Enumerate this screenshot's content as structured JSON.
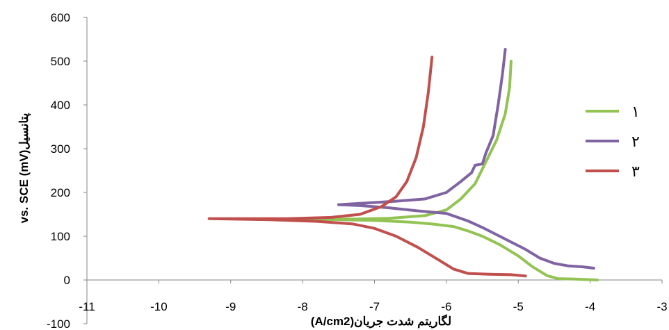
{
  "chart_data": {
    "type": "line",
    "xlabel": "لگاریتم شدت جریان(A/cm2)",
    "ylabel": "vs. SCE (mV)پتانسیل",
    "xlim": [
      -11,
      -3
    ],
    "ylim": [
      -100,
      600
    ],
    "xticks": [
      -11,
      -10,
      -9,
      -8,
      -7,
      -6,
      -5,
      -4,
      -3
    ],
    "yticks": [
      -100,
      0,
      100,
      200,
      300,
      400,
      500,
      600
    ],
    "grid": false,
    "legend_position": "right",
    "series": [
      {
        "name": "۱",
        "color": "#92c353",
        "points": [
          [
            -5.1,
            500
          ],
          [
            -5.12,
            440
          ],
          [
            -5.18,
            380
          ],
          [
            -5.3,
            320
          ],
          [
            -5.45,
            270
          ],
          [
            -5.6,
            220
          ],
          [
            -5.8,
            185
          ],
          [
            -6.0,
            160
          ],
          [
            -6.3,
            147
          ],
          [
            -6.8,
            141
          ],
          [
            -7.3,
            139
          ],
          [
            -8.0,
            139
          ],
          [
            -7.5,
            138
          ],
          [
            -7.0,
            136
          ],
          [
            -6.5,
            132
          ],
          [
            -6.2,
            128
          ],
          [
            -5.9,
            122
          ],
          [
            -5.7,
            112
          ],
          [
            -5.5,
            100
          ],
          [
            -5.25,
            80
          ],
          [
            -5.0,
            55
          ],
          [
            -4.8,
            30
          ],
          [
            -4.6,
            10
          ],
          [
            -4.45,
            3
          ],
          [
            -4.2,
            2
          ],
          [
            -3.9,
            0
          ]
        ]
      },
      {
        "name": "۲",
        "color": "#8064a2",
        "points": [
          [
            -5.18,
            527
          ],
          [
            -5.22,
            470
          ],
          [
            -5.28,
            400
          ],
          [
            -5.35,
            330
          ],
          [
            -5.45,
            290
          ],
          [
            -5.5,
            265
          ],
          [
            -5.6,
            262
          ],
          [
            -5.65,
            245
          ],
          [
            -5.8,
            225
          ],
          [
            -6.0,
            200
          ],
          [
            -6.3,
            185
          ],
          [
            -6.7,
            180
          ],
          [
            -7.2,
            175
          ],
          [
            -7.5,
            172
          ],
          [
            -7.2,
            170
          ],
          [
            -6.8,
            165
          ],
          [
            -6.4,
            158
          ],
          [
            -6.0,
            152
          ],
          [
            -5.7,
            135
          ],
          [
            -5.5,
            120
          ],
          [
            -5.2,
            95
          ],
          [
            -4.9,
            70
          ],
          [
            -4.7,
            50
          ],
          [
            -4.5,
            38
          ],
          [
            -4.3,
            32
          ],
          [
            -4.1,
            30
          ],
          [
            -3.95,
            27
          ]
        ]
      },
      {
        "name": "۳",
        "color": "#c0504d",
        "points": [
          [
            -6.2,
            509
          ],
          [
            -6.25,
            430
          ],
          [
            -6.32,
            350
          ],
          [
            -6.42,
            280
          ],
          [
            -6.55,
            225
          ],
          [
            -6.7,
            190
          ],
          [
            -6.9,
            168
          ],
          [
            -7.2,
            150
          ],
          [
            -7.6,
            143
          ],
          [
            -8.2,
            140
          ],
          [
            -8.8,
            140
          ],
          [
            -9.3,
            140
          ],
          [
            -8.5,
            138
          ],
          [
            -7.8,
            134
          ],
          [
            -7.3,
            128
          ],
          [
            -7.0,
            118
          ],
          [
            -6.7,
            100
          ],
          [
            -6.4,
            75
          ],
          [
            -6.1,
            45
          ],
          [
            -5.9,
            25
          ],
          [
            -5.7,
            15
          ],
          [
            -5.4,
            13
          ],
          [
            -5.1,
            12
          ],
          [
            -4.9,
            9
          ]
        ]
      }
    ]
  }
}
